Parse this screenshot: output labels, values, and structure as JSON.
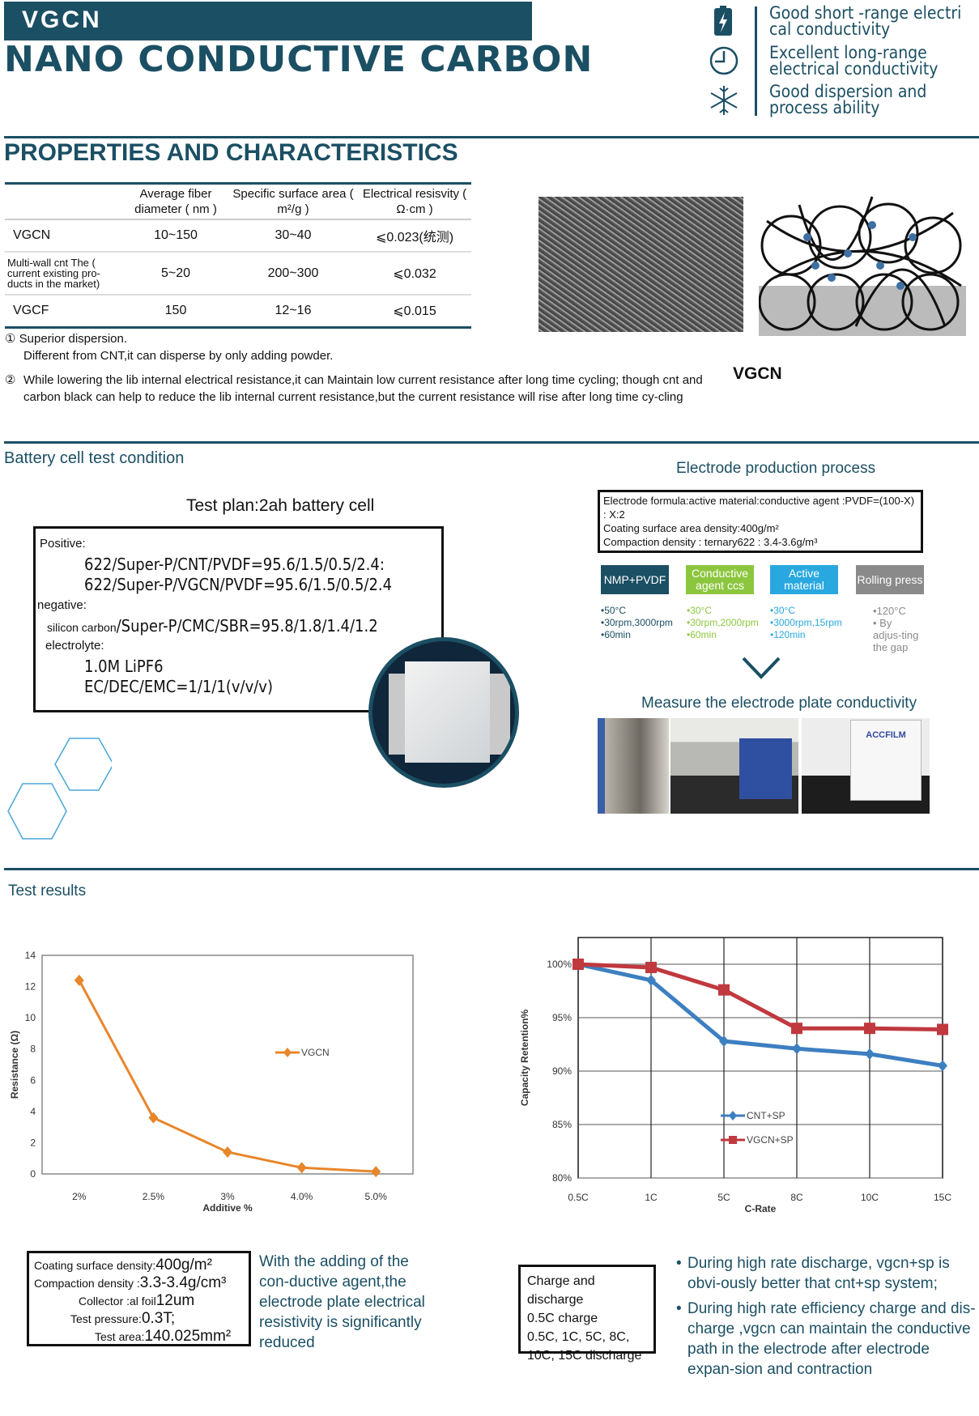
{
  "header": {
    "badge": "VGCN",
    "title": "NANO  CONDUCTIVE  CARBON"
  },
  "features": [
    {
      "icon": "lightning-battery-icon",
      "line1": "Good short -range electri",
      "line2": "cal conductivity"
    },
    {
      "icon": "clock-icon",
      "line1": "Excellent long-range",
      "line2": "electrical conductivity"
    },
    {
      "icon": "snowflake-icon",
      "line1": "Good dispersion and",
      "line2": "process ability"
    }
  ],
  "properties": {
    "heading": "PROPERTIES AND CHARACTERISTICS",
    "columns": [
      "",
      "Average fiber diameter ( nm )",
      "Specific surface area ( m²/g )",
      "Electrical resisvity ( Ω·cm )"
    ],
    "rows": [
      [
        "VGCN",
        "10~150",
        "30~40",
        "⩽0.023(统测)"
      ],
      [
        "Multi-wall cnt The ( current existing pro-ducts in the market)",
        "5~20",
        "200~300",
        "⩽0.032"
      ],
      [
        "VGCF",
        "150",
        "12~16",
        "⩽0.015"
      ]
    ],
    "image_label": "VGCN",
    "notes": [
      {
        "num": "①",
        "line1": "Superior dispersion.",
        "line2": "Different from CNT,it can disperse by only adding powder."
      },
      {
        "num": "②",
        "text": "While lowering the lib internal electrical resistance,it can Maintain low current resistance after long time cycling; though cnt and carbon black can help to reduce the lib internal current resistance,but the current resistance will rise after long time cy-cling"
      }
    ]
  },
  "battery": {
    "heading": "Battery cell test condition",
    "plan_title": "Test plan:2ah battery cell",
    "positive_label": "Positive:",
    "positive": [
      "622/Super-P/CNT/PVDF=95.6/1.5/0.5/2.4:",
      "622/Super-P/VGCN/PVDF=95.6/1.5/0.5/2.4"
    ],
    "negative_label": "negative:",
    "negative_prefix": "silicon carbon",
    "negative": "/Super-P/CMC/SBR=95.8/1.8/1.4/1.2",
    "electrolyte_label": "electrolyte:",
    "electrolyte": [
      "1.0M LiPF6",
      "EC/DEC/EMC=1/1/1(v/v/v)"
    ]
  },
  "electrode": {
    "heading": "Electrode production process",
    "formula": [
      "Electrode formula:active material:conductive agent :PVDF=(100-X) : X:2",
      "Coating surface area density:400g/m²",
      "Compaction density : ternary622 : 3.4-3.6g/m³"
    ],
    "steps": [
      {
        "label": "NMP+PVDF",
        "color": "#1b4f63",
        "details": [
          "•50°C",
          "•30rpm,3000rpm",
          "•60min"
        ],
        "detail_color": "#1b4f63"
      },
      {
        "label": "Conductive agent ccs",
        "color": "#8cc63f",
        "details": [
          "•30°C",
          "•30rpm,2000rpm",
          "•60min"
        ],
        "detail_color": "#8cc63f"
      },
      {
        "label": "Active material",
        "color": "#29a8e0",
        "details": [
          "•30°C",
          "•3000rpm,15rpm",
          "•120min"
        ],
        "detail_color": "#29a8e0"
      },
      {
        "label": "Rolling press",
        "color": "#8a8a8a",
        "details": [
          "•120°C",
          "• By adjus-ting the gap"
        ],
        "detail_color": "#8a8a8a"
      }
    ],
    "measure_heading": "Measure the electrode plate conductivity",
    "photo_label": "ACCFILM"
  },
  "results": {
    "heading": "Test results",
    "left_box": [
      {
        "label": "Coating surface density",
        "value": "400g/m²"
      },
      {
        "label": "Compaction density",
        "value": "3.3-3.4g/cm³"
      },
      {
        "label": "Collector :al foil",
        "value": "12um"
      },
      {
        "label": "Test pressure",
        "value": "0.3T;"
      },
      {
        "label": "Test area",
        "value": "140.025mm²"
      }
    ],
    "left_text": "With the adding of the con-ductive agent,the electrode plate electrical resistivity is significantly reduced",
    "charge_box": [
      "Charge and discharge",
      "0.5C charge",
      "0.5C, 1C, 5C, 8C,",
      "10C, 15C discharge"
    ],
    "bullets": [
      "During high rate discharge, vgcn+sp is obvi-ously better that cnt+sp system;",
      "During high rate efficiency charge and dis-charge ,vgcn can maintain the conductive path in the electrode after electrode expan-sion and contraction"
    ]
  },
  "chart_data": [
    {
      "type": "line",
      "xlabel": "Additive %",
      "ylabel": "Resistance (Ω)",
      "categories": [
        "2%",
        "2.5%",
        "3%",
        "4.0%",
        "5.0%"
      ],
      "ylim": [
        0,
        14
      ],
      "yticks": [
        0,
        2,
        4,
        6,
        8,
        10,
        12,
        14
      ],
      "grid": false,
      "legend": "center-right",
      "series": [
        {
          "name": "VGCN",
          "values": [
            12.4,
            3.6,
            1.4,
            0.4,
            0.15
          ],
          "color": "#e8862a"
        }
      ]
    },
    {
      "type": "line",
      "xlabel": "C-Rate",
      "ylabel": "Capacity Retention%",
      "categories": [
        "0.5C",
        "1C",
        "5C",
        "8C",
        "10C",
        "15C"
      ],
      "ylim": [
        80,
        102.5
      ],
      "yticks": [
        "80%",
        "85%",
        "90%",
        "95%",
        "100%"
      ],
      "grid": true,
      "legend": "bottom-center",
      "series": [
        {
          "name": "CNT+SP",
          "values": [
            100,
            98.5,
            92.8,
            92.1,
            91.6,
            90.5
          ],
          "color": "#3d7fc1"
        },
        {
          "name": "VGCN+SP",
          "values": [
            100,
            99.7,
            97.6,
            94.0,
            94.0,
            93.9
          ],
          "color": "#c0393f"
        }
      ]
    }
  ]
}
